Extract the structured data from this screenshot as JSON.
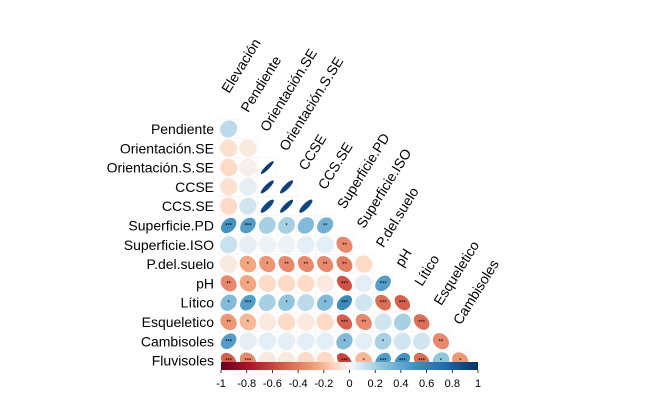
{
  "chart_data": {
    "type": "heatmap",
    "style": "correlation-ellipse-lower-triangle",
    "title": "",
    "variables": [
      "Elevación",
      "Pendiente",
      "Orientación.SE",
      "Orientación.S.SE",
      "CCSE",
      "CCS.SE",
      "Superficie.PD",
      "Superficie.ISO",
      "P.del.suelo",
      "pH",
      "Lítico",
      "Esqueletico",
      "Cambisoles",
      "Fluvisoles"
    ],
    "row_labels": [
      "Pendiente",
      "Orientación.SE",
      "Orientación.S.SE",
      "CCSE",
      "CCS.SE",
      "Superficie.PD",
      "Superficie.ISO",
      "P.del.suelo",
      "pH",
      "Lítico",
      "Esqueletico",
      "Cambisoles",
      "Fluvisoles"
    ],
    "diagonal_labels": [
      "Elevación",
      "Pendiente",
      "Orientación.SE",
      "Orientación.S.SE",
      "CCSE",
      "CCS.SE",
      "Superficie.PD",
      "Superficie.ISO",
      "P.del.suelo",
      "pH",
      "Lítico",
      "Esqueletico",
      "Cambisoles"
    ],
    "rows": [
      {
        "name": "Pendiente",
        "values": [
          0.15
        ],
        "stars": [
          ""
        ]
      },
      {
        "name": "Orientación.SE",
        "values": [
          -0.08,
          -0.05
        ],
        "stars": [
          "",
          ""
        ]
      },
      {
        "name": "Orientación.S.SE",
        "values": [
          -0.1,
          -0.03,
          0.95
        ],
        "stars": [
          "",
          "",
          ""
        ]
      },
      {
        "name": "CCSE",
        "values": [
          -0.08,
          0.05,
          0.93,
          0.92
        ],
        "stars": [
          "",
          "",
          "",
          ""
        ]
      },
      {
        "name": "CCS.SE",
        "values": [
          -0.1,
          0.1,
          0.9,
          0.92,
          0.9
        ],
        "stars": [
          "",
          "",
          "",
          "",
          ""
        ]
      },
      {
        "name": "Superficie.PD",
        "values": [
          0.5,
          0.45,
          0.2,
          0.2,
          0.3,
          0.35
        ],
        "stars": [
          "***",
          "***",
          "",
          "*",
          "",
          "**"
        ]
      },
      {
        "name": "Superficie.ISO",
        "values": [
          0.12,
          0.05,
          0.03,
          0.03,
          0.05,
          0.05,
          -0.35
        ],
        "stars": [
          "",
          "",
          "",
          "",
          "",
          "",
          "**"
        ]
      },
      {
        "name": "P.del.suelo",
        "values": [
          -0.05,
          -0.25,
          -0.3,
          -0.35,
          -0.35,
          -0.35,
          -0.4,
          -0.1
        ],
        "stars": [
          "",
          "*",
          "*",
          "**",
          "**",
          "**",
          "**",
          ""
        ]
      },
      {
        "name": "pH",
        "values": [
          -0.35,
          -0.25,
          -0.1,
          -0.1,
          -0.1,
          -0.05,
          -0.55,
          0.05,
          0.45
        ],
        "stars": [
          "**",
          "*",
          "",
          "",
          "",
          "",
          "***",
          "",
          "***"
        ]
      },
      {
        "name": "Lítico",
        "values": [
          0.3,
          0.45,
          0.2,
          0.25,
          0.15,
          0.3,
          0.55,
          0.1,
          -0.45,
          -0.5
        ],
        "stars": [
          "*",
          "***",
          "",
          "*",
          "",
          "*",
          "***",
          "",
          "***",
          "***"
        ]
      },
      {
        "name": "Esqueletico",
        "values": [
          -0.3,
          -0.2,
          -0.05,
          -0.1,
          -0.05,
          -0.1,
          -0.5,
          -0.35,
          0.1,
          0.2,
          -0.45
        ],
        "stars": [
          "**",
          "*",
          "",
          "",
          "",
          "",
          "***",
          "**",
          "",
          "",
          "***"
        ]
      },
      {
        "name": "Cambisoles",
        "values": [
          0.45,
          0.05,
          0.05,
          0.05,
          0.05,
          0.05,
          0.3,
          0.05,
          0.2,
          0.1,
          0.1,
          -0.35
        ],
        "stars": [
          "***",
          "",
          "",
          "",
          "",
          "",
          "*",
          "",
          "*",
          "",
          "",
          "**"
        ]
      },
      {
        "name": "Fluvisoles",
        "values": [
          -0.5,
          -0.35,
          -0.05,
          -0.05,
          -0.1,
          -0.1,
          -0.6,
          -0.2,
          0.45,
          0.5,
          -0.45,
          0.25,
          -0.3
        ],
        "stars": [
          "***",
          "***",
          "",
          "",
          "",
          "",
          "***",
          "*",
          "***",
          "***",
          "***",
          "*",
          "*"
        ]
      }
    ],
    "colorbar": {
      "min": -1,
      "max": 1,
      "ticks": [
        "-1",
        "-0.8",
        "-0.6",
        "-0.4",
        "-0.2",
        "0",
        "0.2",
        "0.4",
        "0.6",
        "0.8",
        "1"
      ]
    },
    "colors": {
      "negative": "#67001f",
      "mid": "#f7f7f7",
      "positive": "#053061"
    }
  }
}
